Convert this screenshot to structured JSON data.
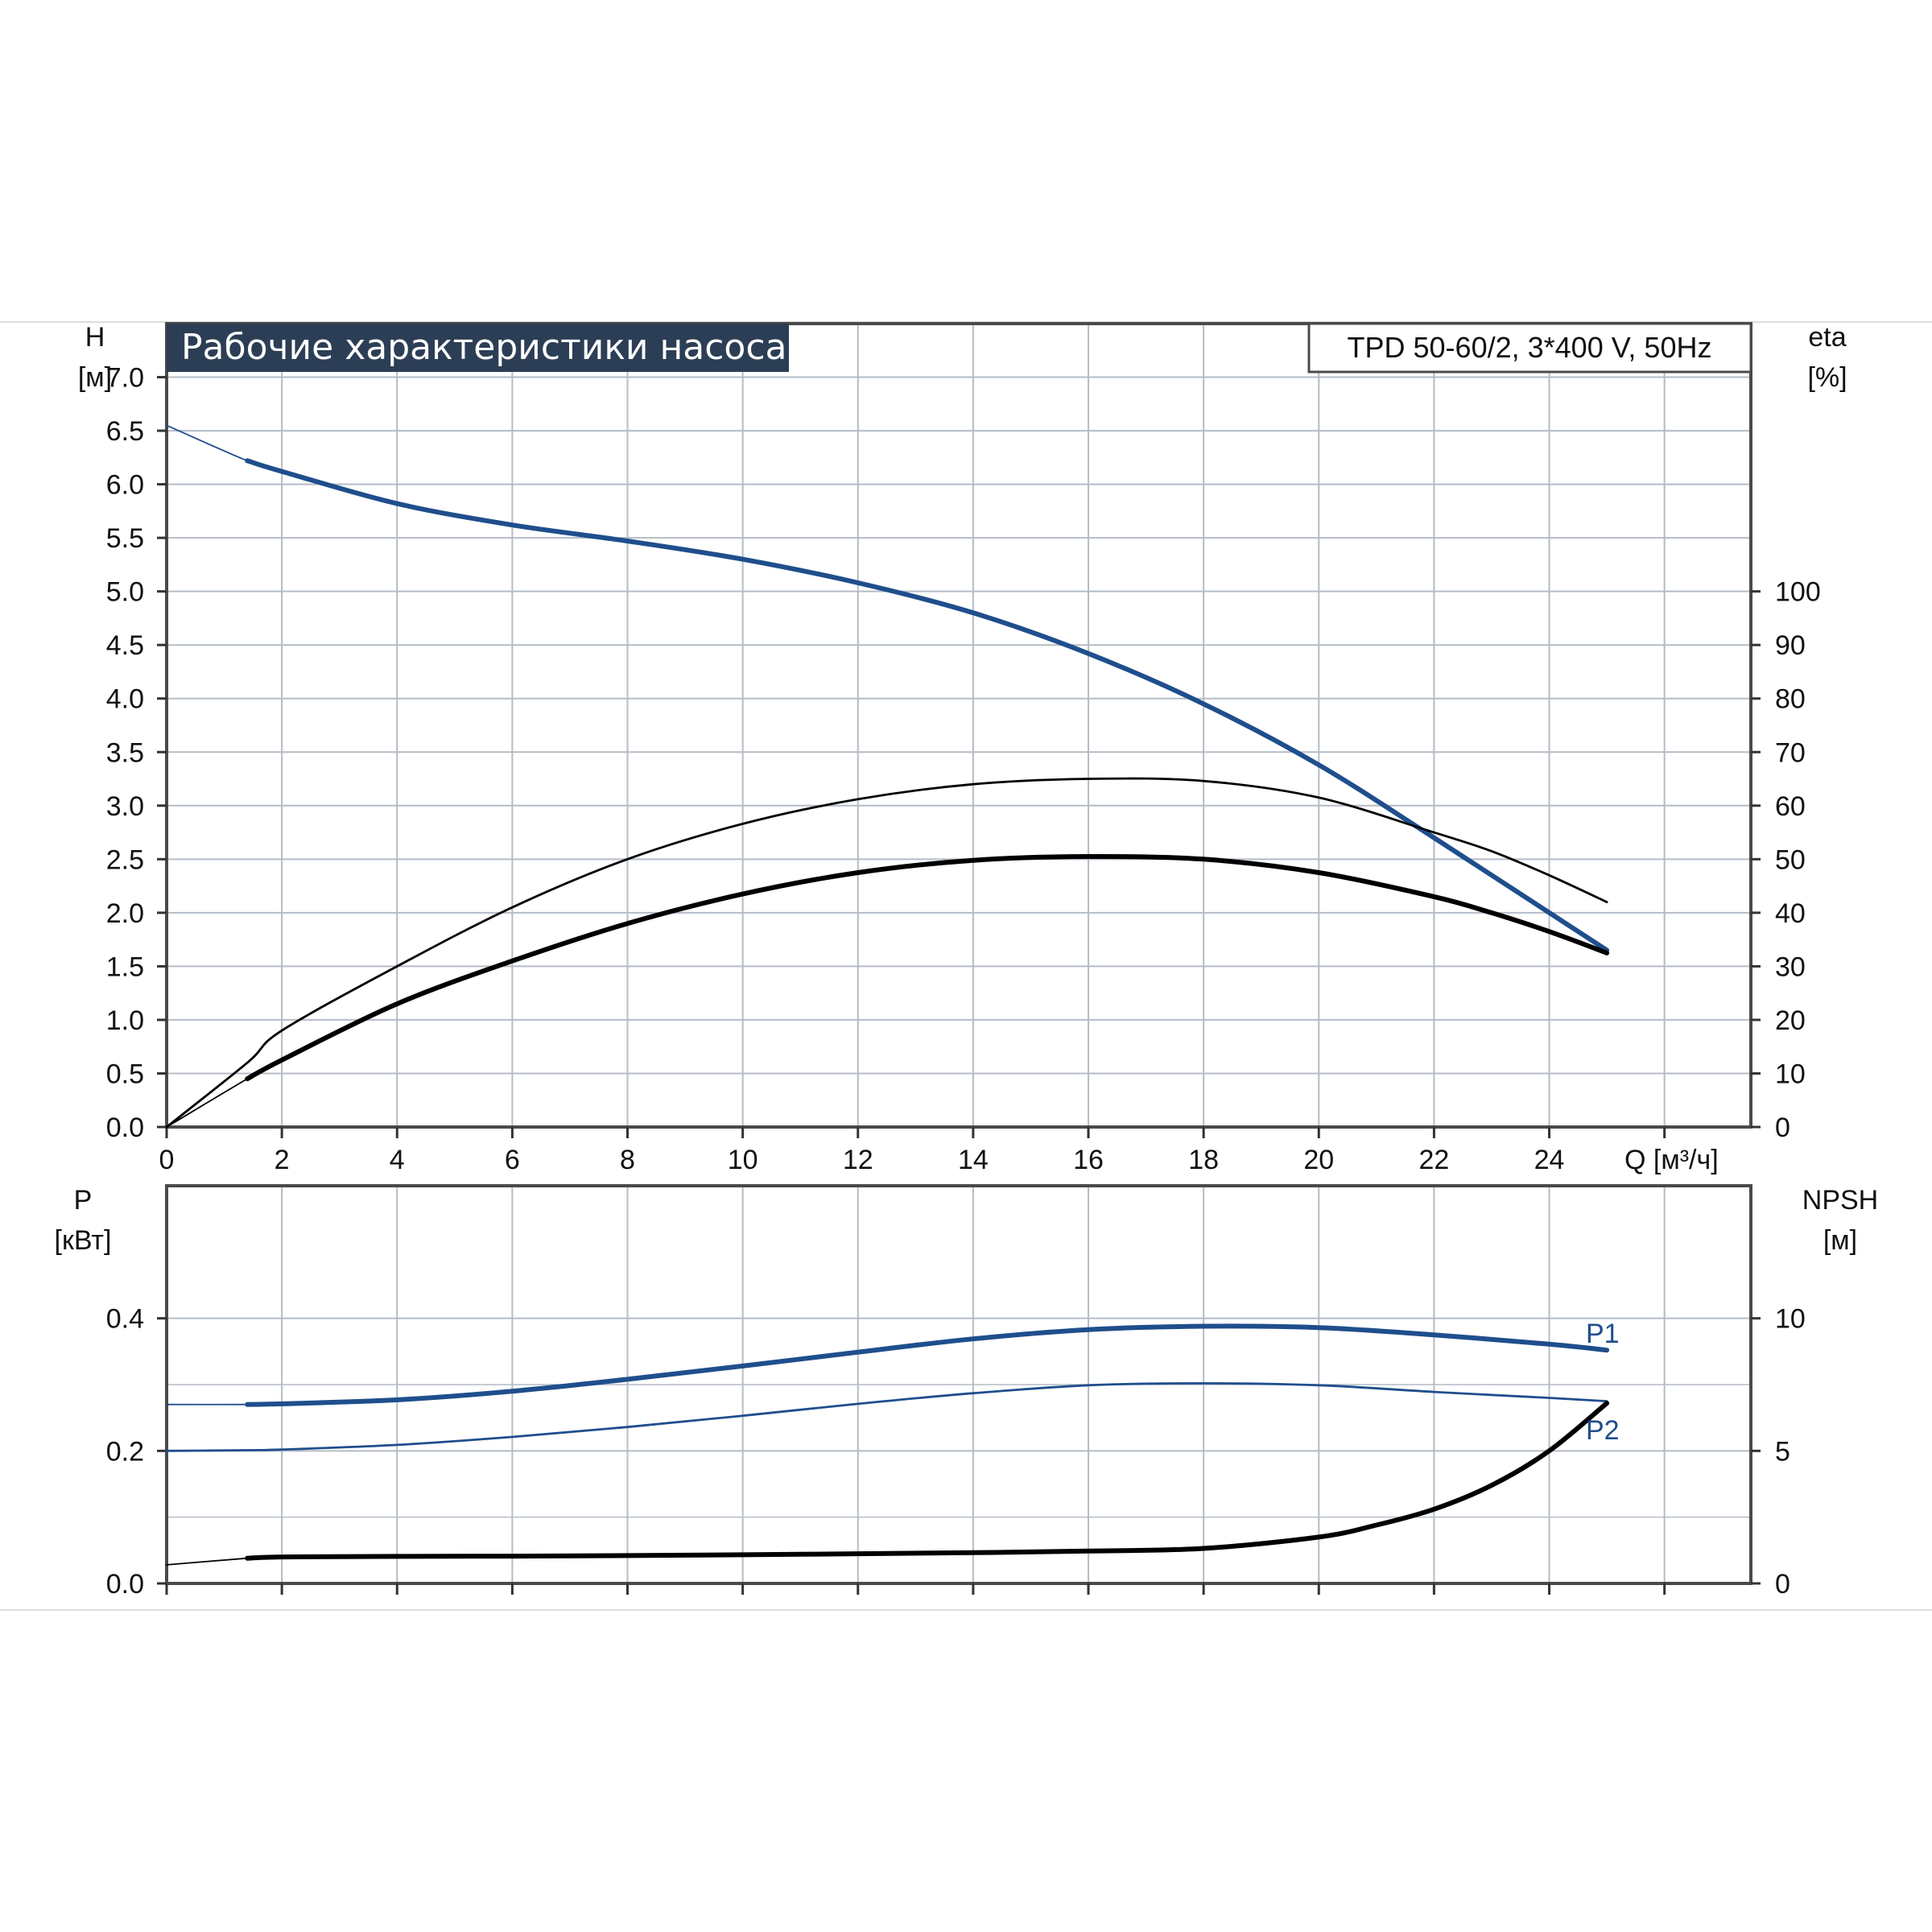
{
  "title": "Рабочие характеристики насоса",
  "model": "TPD 50-60/2, 3*400 V, 50Hz",
  "colors": {
    "blue": "#1f4e8c",
    "black": "#000000",
    "grid": "#b4bcc6",
    "frame": "#4a4a4a",
    "title_bg": "#2c3e55"
  },
  "chart_data": [
    {
      "id": "top",
      "type": "line",
      "title": "Рабочие характеристики насоса",
      "xlabel": "Q [м³/ч]",
      "xlim": [
        0,
        27.5
      ],
      "x_ticks": [
        "0",
        "2",
        "4",
        "6",
        "8",
        "10",
        "12",
        "14",
        "16",
        "18",
        "20",
        "22",
        "24"
      ],
      "ylabel_left": [
        "H",
        "[м]"
      ],
      "ylim_left": [
        0,
        7.5
      ],
      "y_ticks_left": [
        "0.0",
        "0.5",
        "1.0",
        "1.5",
        "2.0",
        "2.5",
        "3.0",
        "3.5",
        "4.0",
        "4.5",
        "5.0",
        "5.5",
        "6.0",
        "6.5",
        "7.0"
      ],
      "ylabel_right": [
        "eta",
        "[%]"
      ],
      "ylim_right": [
        0,
        150
      ],
      "y_ticks_right": [
        "0",
        "10",
        "20",
        "30",
        "40",
        "50",
        "60",
        "70",
        "80",
        "90",
        "100"
      ],
      "grid": true,
      "series": [
        {
          "axis": "left",
          "color": "blue",
          "style": "thick",
          "x": [
            0,
            1.4,
            2,
            4,
            6,
            8,
            10,
            12,
            14,
            16,
            18,
            20,
            22,
            25
          ],
          "y": [
            6.55,
            6.22,
            6.12,
            5.82,
            5.62,
            5.47,
            5.3,
            5.08,
            4.8,
            4.42,
            3.95,
            3.38,
            2.7,
            1.65
          ]
        },
        {
          "axis": "right",
          "color": "black",
          "style": "thin",
          "x": [
            0,
            1.4,
            2,
            4,
            6,
            8,
            10,
            12,
            14,
            16,
            18,
            20,
            22,
            23,
            24,
            25
          ],
          "y": [
            0,
            12,
            18,
            30,
            41,
            50,
            56.6,
            61.2,
            64,
            65,
            64.6,
            61.5,
            55,
            51.5,
            47,
            42
          ]
        },
        {
          "axis": "right",
          "color": "black",
          "style": "thick",
          "x": [
            0,
            1.4,
            2,
            4,
            6,
            8,
            10,
            12,
            14,
            16,
            18,
            20,
            22,
            23,
            24,
            25
          ],
          "y": [
            0,
            9,
            12.5,
            23,
            31,
            38,
            43.5,
            47.5,
            49.8,
            50.5,
            50,
            47.5,
            43,
            40,
            36.5,
            32.5
          ]
        }
      ]
    },
    {
      "id": "bottom",
      "type": "line",
      "xlim": [
        0,
        27.5
      ],
      "ylabel_left": [
        "P",
        "[кВт]"
      ],
      "ylim_left": [
        0,
        0.6
      ],
      "y_ticks_left": [
        "0.0",
        "0.2",
        "0.4"
      ],
      "ylabel_right": [
        "NPSH",
        "[м]"
      ],
      "ylim_right": [
        0,
        15
      ],
      "y_ticks_right": [
        "0",
        "5",
        "10"
      ],
      "grid": true,
      "series": [
        {
          "name": "P1",
          "axis": "left",
          "color": "blue",
          "style": "thick",
          "x": [
            0,
            1.4,
            2,
            4,
            6,
            8,
            10,
            12,
            14,
            16,
            18,
            20,
            22,
            24,
            25
          ],
          "y": [
            0.27,
            0.27,
            0.271,
            0.277,
            0.29,
            0.308,
            0.328,
            0.349,
            0.369,
            0.383,
            0.388,
            0.386,
            0.375,
            0.361,
            0.352
          ]
        },
        {
          "name": "P2",
          "axis": "left",
          "color": "blue",
          "style": "thin",
          "x": [
            0,
            1.4,
            2,
            4,
            6,
            8,
            10,
            12,
            14,
            16,
            18,
            20,
            22,
            24,
            25
          ],
          "y": [
            0.2,
            0.201,
            0.202,
            0.209,
            0.221,
            0.236,
            0.253,
            0.271,
            0.287,
            0.299,
            0.302,
            0.299,
            0.289,
            0.28,
            0.275
          ]
        },
        {
          "axis": "right",
          "color": "black",
          "style": "thick",
          "x": [
            0,
            1.4,
            2,
            4,
            6,
            8,
            10,
            12,
            14,
            16,
            18,
            20,
            21,
            22,
            23,
            24,
            25
          ],
          "y": [
            0.7,
            0.95,
            1.0,
            1.02,
            1.03,
            1.05,
            1.08,
            1.12,
            1.16,
            1.22,
            1.32,
            1.75,
            2.2,
            2.8,
            3.7,
            5.0,
            6.8
          ]
        }
      ]
    }
  ]
}
